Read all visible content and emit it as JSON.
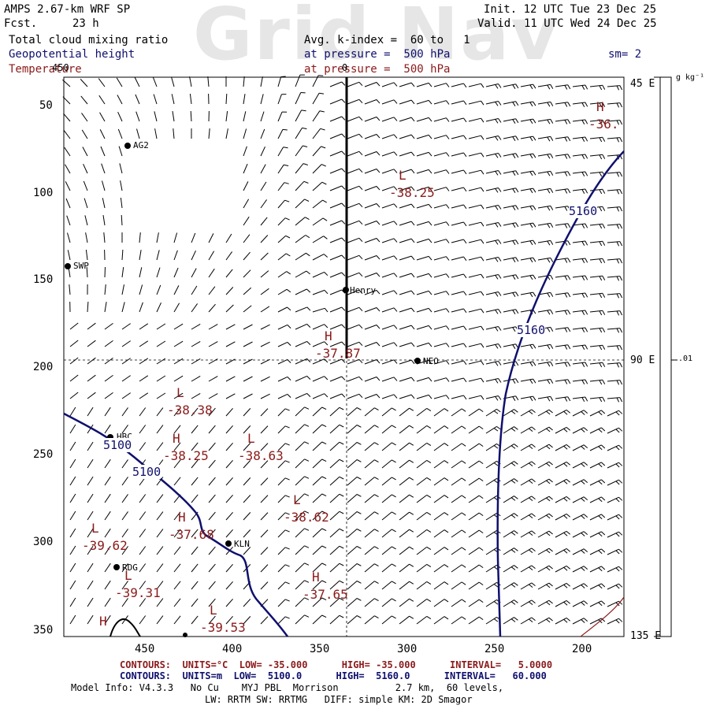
{
  "watermark": "Grid Nav",
  "header": {
    "model": "AMPS 2.67-km WRF SP",
    "fcst_label": "Fcst.",
    "fcst_value": "23 h",
    "init": "Init. 12 UTC Tue 23 Dec 25",
    "valid": "Valid. 11 UTC Wed 24 Dec 25",
    "field1": "Total cloud mixing ratio",
    "field2": "Geopotential height",
    "field3": "Temperature",
    "avg": "Avg. k-index =  60 to   1",
    "pressure1": "at pressure =  500 hPa",
    "pressure2": "at pressure =  500 hPa",
    "sm": "sm= 2"
  },
  "colors": {
    "height": "#10106e",
    "temperature": "#8b1a1a",
    "black": "#000000"
  },
  "axes": {
    "x_ticks": [
      "450",
      "400",
      "350",
      "300",
      "250",
      "200"
    ],
    "y_ticks": [
      "50",
      "100",
      "150",
      "200",
      "250",
      "300",
      "350"
    ],
    "top_tick": "450",
    "top_tick2": "0",
    "right_labels": [
      "45 E",
      "90 E",
      "135 E"
    ],
    "colorbar_unit": "g kg⁻¹",
    "colorbar_value": ".01"
  },
  "stations": [
    "AG2",
    "SWP",
    "Henry",
    "NEO",
    "HBC",
    "KLN",
    "RDG"
  ],
  "height_labels": [
    "5160",
    "5160",
    "5100",
    "5100"
  ],
  "pressure_centers": [
    {
      "letter": "H",
      "value": "-36."
    },
    {
      "letter": "L",
      "value": "-38.25"
    },
    {
      "letter": "H",
      "value": "-37.87"
    },
    {
      "letter": "L",
      "value": "-38.38"
    },
    {
      "letter": "H",
      "value": "-38.25"
    },
    {
      "letter": "L",
      "value": "-38.63"
    },
    {
      "letter": "L",
      "value": "-38.62"
    },
    {
      "letter": "H",
      "value": "-37.68"
    },
    {
      "letter": "L",
      "value": "-39.62"
    },
    {
      "letter": "L",
      "value": "-39.31"
    },
    {
      "letter": "H",
      "value": "-37.65"
    },
    {
      "letter": "L",
      "value": "-39.53"
    },
    {
      "letter": "H",
      "value": ""
    }
  ],
  "footer": {
    "contours_t": "CONTOURS:  UNITS=°C  LOW= -35.000      HIGH= -35.000      INTERVAL=   5.0000",
    "contours_h": "CONTOURS:  UNITS=m  LOW=  5100.0      HIGH=  5160.0      INTERVAL=   60.000",
    "model_info": "Model Info: V4.3.3   No Cu    MYJ PBL  Morrison          2.7 km,  60 levels,",
    "model_info2": "LW: RRTM SW: RRTMG   DIFF: simple KM: 2D Smagor"
  }
}
